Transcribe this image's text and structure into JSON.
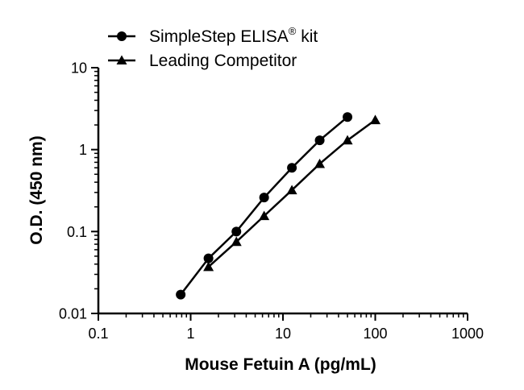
{
  "chart_data": {
    "type": "line",
    "title": "",
    "xlabel": "Mouse Fetuin A (pg/mL)",
    "ylabel": "O.D. (450 nm)",
    "xscale": "log",
    "yscale": "log",
    "xlim": [
      0.1,
      1000
    ],
    "ylim": [
      0.01,
      10
    ],
    "xticks": [
      "0.1",
      "1",
      "10",
      "100",
      "1000"
    ],
    "yticks": [
      "0.01",
      "0.1",
      "1",
      "10"
    ],
    "grid": false,
    "legend_position": "top",
    "series": [
      {
        "name": "SimpleStep ELISA",
        "name_superscript": "®",
        "name_suffix": " kit",
        "marker": "circle",
        "color": "#000000",
        "x": [
          0.78,
          1.56,
          3.13,
          6.25,
          12.5,
          25,
          50
        ],
        "y": [
          0.017,
          0.047,
          0.1,
          0.26,
          0.6,
          1.3,
          2.5
        ]
      },
      {
        "name": "Leading Competitor",
        "marker": "triangle",
        "color": "#000000",
        "x": [
          1.56,
          3.13,
          6.25,
          12.5,
          25,
          50,
          100
        ],
        "y": [
          0.037,
          0.075,
          0.155,
          0.32,
          0.67,
          1.3,
          2.3
        ]
      }
    ]
  }
}
